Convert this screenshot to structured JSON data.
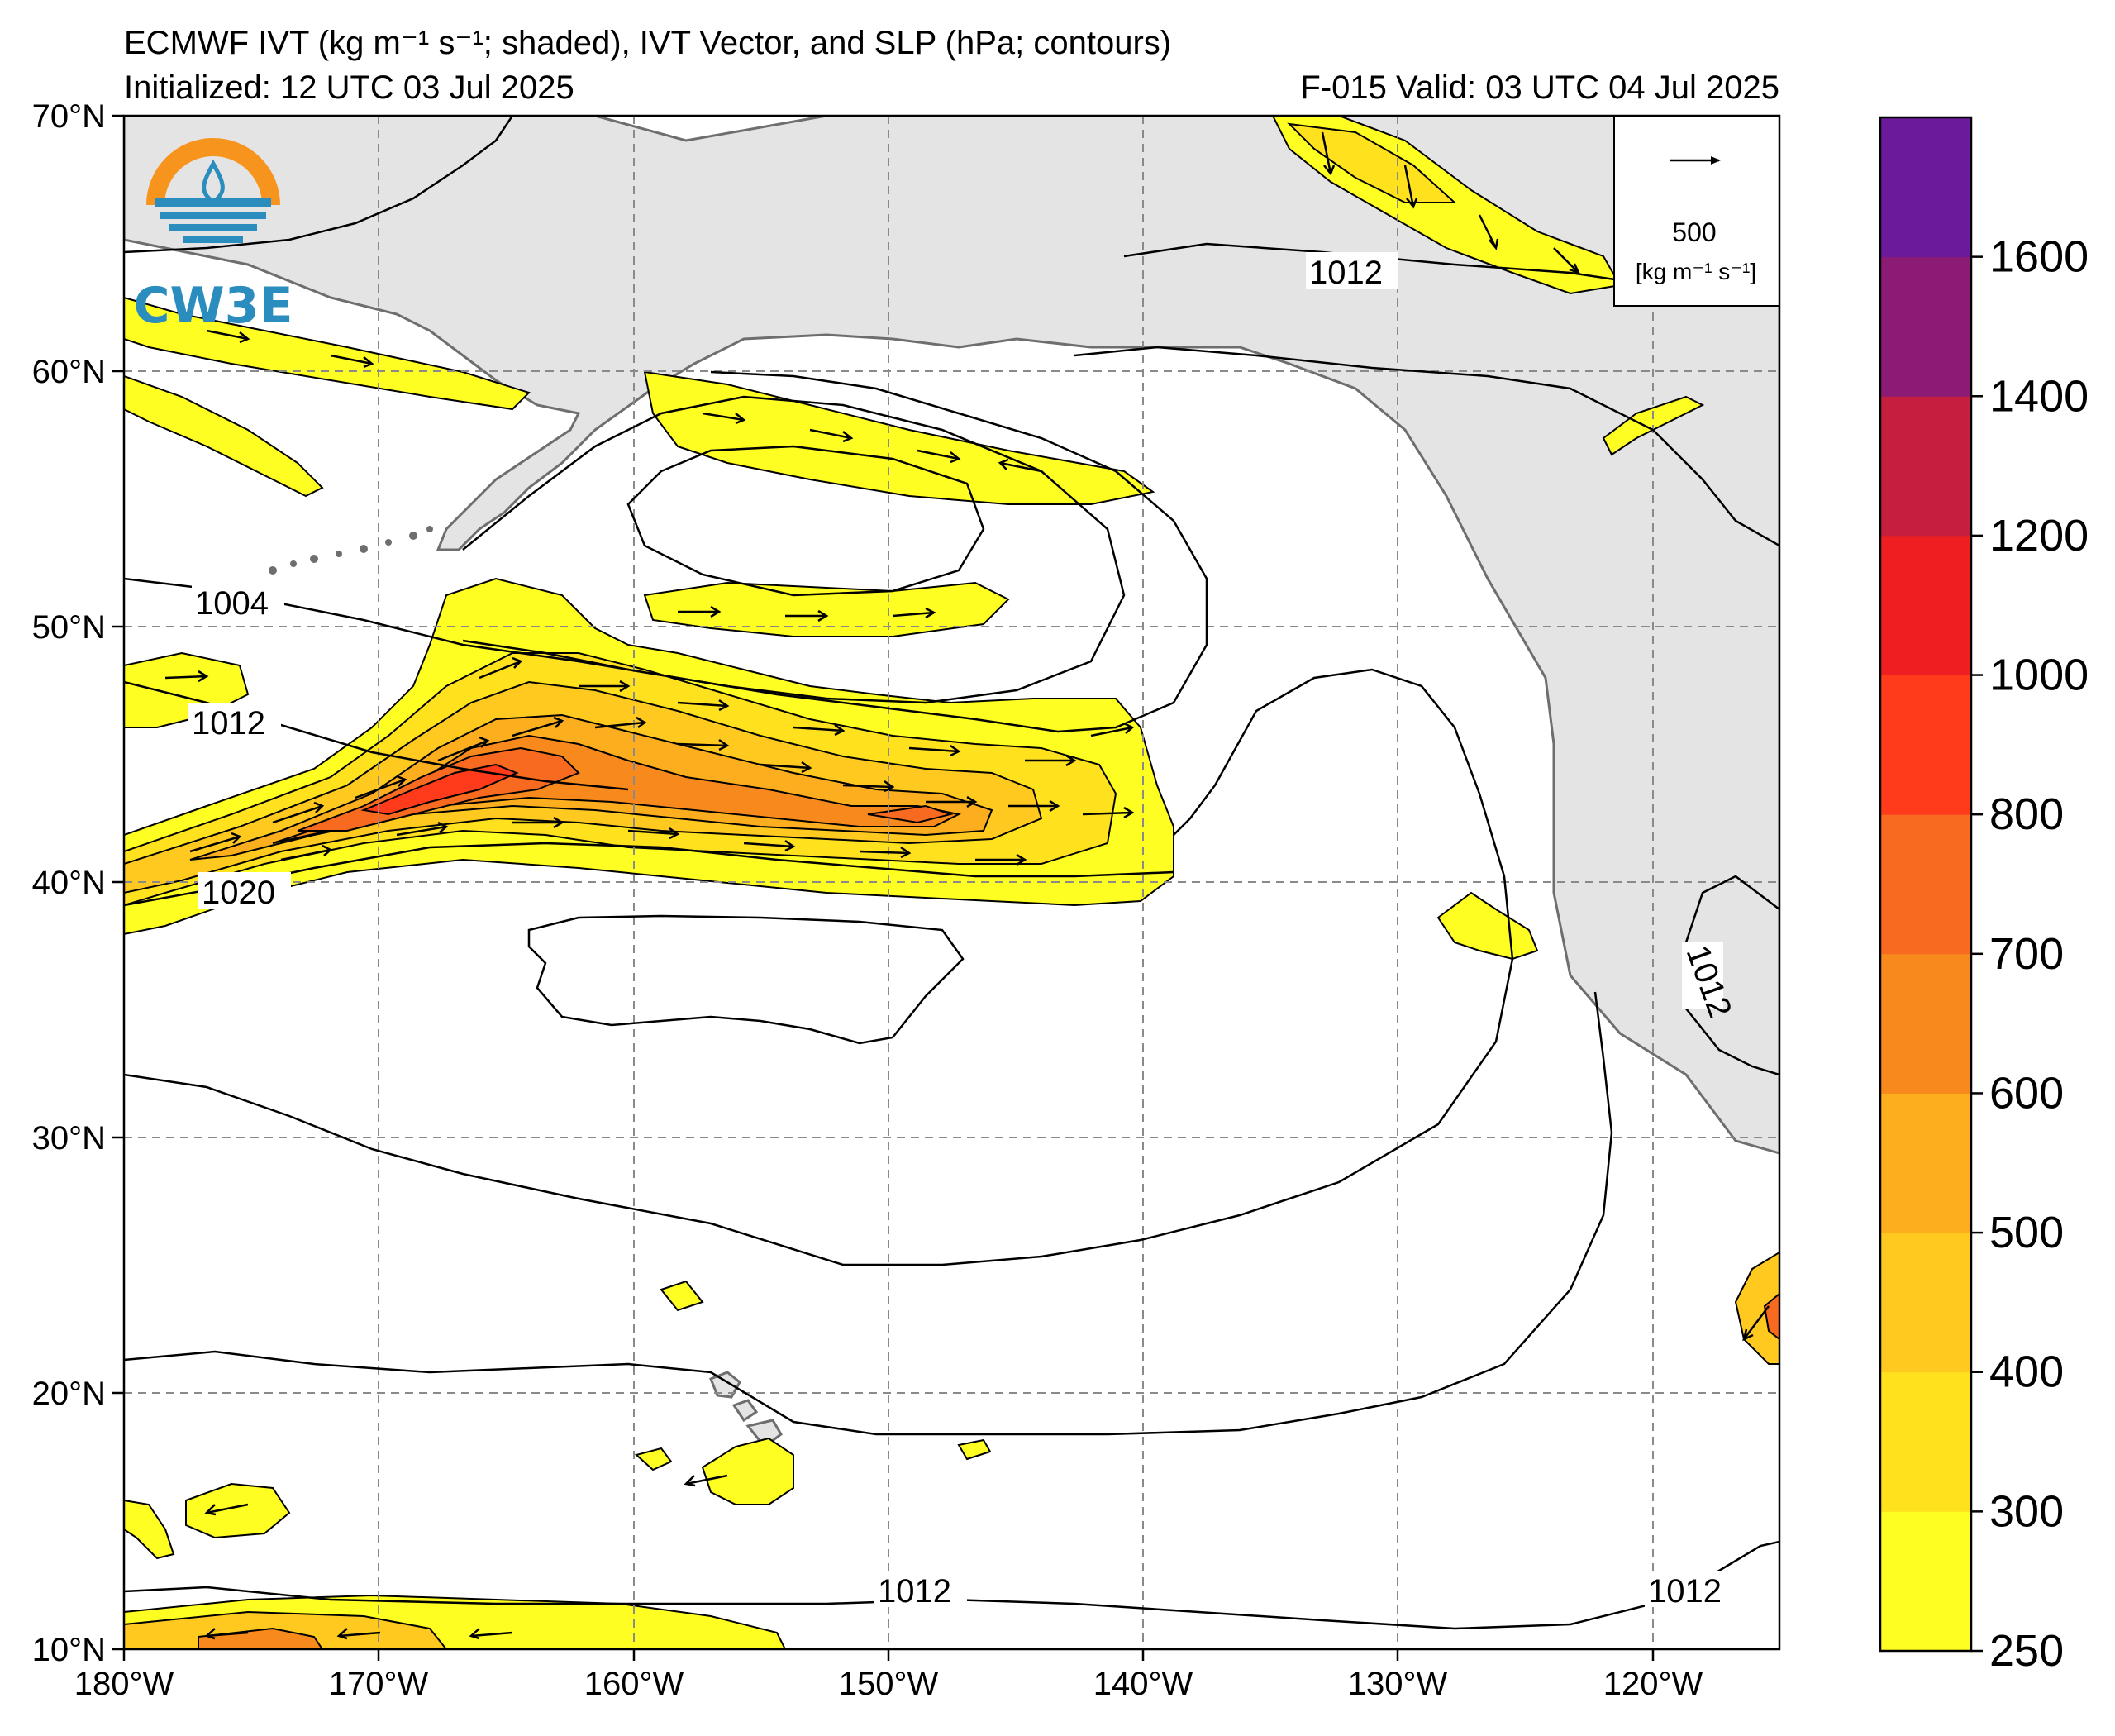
{
  "header": {
    "title": "ECMWF IVT (kg m⁻¹ s⁻¹; shaded), IVT Vector, and SLP (hPa; contours)",
    "initialized": "Initialized: 12 UTC 03 Jul 2025",
    "valid": "F-015  Valid: 03 UTC 04 Jul 2025"
  },
  "logo": {
    "text": "CW3E",
    "colors": {
      "ring": "#f7941d",
      "blue": "#2b8cbe"
    }
  },
  "axes": {
    "lon_labels": [
      "180°W",
      "170°W",
      "160°W",
      "150°W",
      "140°W",
      "130°W",
      "120°W"
    ],
    "lat_labels": [
      "70°N",
      "60°N",
      "50°N",
      "40°N",
      "30°N",
      "20°N",
      "10°N"
    ],
    "lon_range": [
      -180,
      -115
    ],
    "lat_range": [
      10,
      70
    ],
    "gridlines": "dashed"
  },
  "vector_key": {
    "value": "500",
    "units": "[kg m⁻¹ s⁻¹]"
  },
  "slp_labels": [
    "1004",
    "1012",
    "1020",
    "1012",
    "1012",
    "1012",
    "1012"
  ],
  "colorbar": {
    "ticks": [
      "250",
      "300",
      "400",
      "500",
      "600",
      "700",
      "800",
      "1000",
      "1200",
      "1400",
      "1600"
    ],
    "colors": [
      "#fffe22",
      "#ffe21d",
      "#ffc91f",
      "#fcae1e",
      "#f88a1d",
      "#f86a1f",
      "#ff3b1c",
      "#ee1e21",
      "#c51e3e",
      "#8c1b76",
      "#6a1a9a"
    ]
  },
  "map_colors": {
    "land": "#e4e4e4",
    "coast": "#6e6e6e",
    "ocean": "#ffffff"
  }
}
